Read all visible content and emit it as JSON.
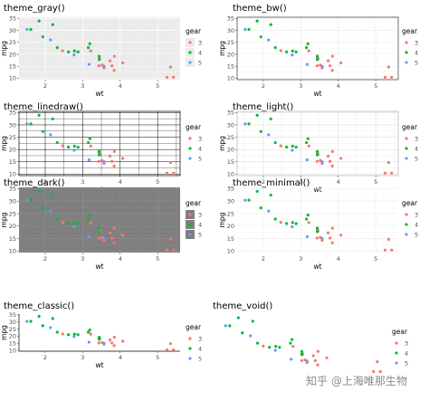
{
  "watermark": "知乎 @上海唯那生物",
  "chart_data": [
    {
      "type": "scatter",
      "title": "theme_gray()",
      "theme": "gray",
      "xlabel": "wt",
      "ylabel": "mpg",
      "xlim": [
        1.3,
        5.6
      ],
      "ylim": [
        9.4,
        35.5
      ],
      "xticks": [
        2,
        3,
        4,
        5
      ],
      "yticks": [
        10,
        15,
        20,
        25,
        30,
        35
      ],
      "legend": {
        "title": "gear",
        "placement": "right",
        "show": true
      },
      "series_ref": "mtcars"
    },
    {
      "type": "scatter",
      "title": "theme_bw()",
      "theme": "bw",
      "xlabel": "wt",
      "ylabel": "mpg",
      "xlim": [
        1.3,
        5.6
      ],
      "ylim": [
        9.4,
        35.5
      ],
      "xticks": [
        2,
        3,
        4,
        5
      ],
      "yticks": [
        10,
        15,
        20,
        25,
        30,
        35
      ],
      "legend": {
        "title": "gear",
        "placement": "right",
        "show": true
      },
      "series_ref": "mtcars"
    },
    {
      "type": "scatter",
      "title": "theme_linedraw()",
      "theme": "linedraw",
      "xlabel": "wt",
      "ylabel": "mpg",
      "xlim": [
        1.3,
        5.6
      ],
      "ylim": [
        9.4,
        35.5
      ],
      "xticks": [
        2,
        3,
        4,
        5
      ],
      "yticks": [
        10,
        15,
        20,
        25,
        30,
        35
      ],
      "legend": {
        "title": "gear",
        "placement": "right",
        "show": true
      },
      "series_ref": "mtcars"
    },
    {
      "type": "scatter",
      "title": "theme_light()",
      "theme": "light",
      "xlabel": "wt",
      "ylabel": "mpg",
      "xlim": [
        1.3,
        5.6
      ],
      "ylim": [
        9.4,
        35.5
      ],
      "xticks": [
        2,
        3,
        4,
        5
      ],
      "yticks": [
        10,
        15,
        20,
        25,
        30,
        35
      ],
      "legend": {
        "title": "gear",
        "placement": "right",
        "show": true
      },
      "series_ref": "mtcars"
    },
    {
      "type": "scatter",
      "title": "theme_dark()",
      "theme": "dark",
      "xlabel": "wt",
      "ylabel": "mpg",
      "xlim": [
        1.3,
        5.6
      ],
      "ylim": [
        9.4,
        35.5
      ],
      "xticks": [
        2,
        3,
        4,
        5
      ],
      "yticks": [
        10,
        15,
        20,
        25,
        30,
        35
      ],
      "legend": {
        "title": "gear",
        "placement": "right",
        "show": true
      },
      "series_ref": "mtcars"
    },
    {
      "type": "scatter",
      "title": "theme_minimal()",
      "theme": "minimal",
      "xlabel": "wt",
      "ylabel": "mpg",
      "xlim": [
        1.3,
        5.6
      ],
      "ylim": [
        9.4,
        35.5
      ],
      "xticks": [
        2,
        3,
        4,
        5
      ],
      "yticks": [
        10,
        15,
        20,
        25,
        30,
        35
      ],
      "legend": {
        "title": "gear",
        "placement": "right",
        "show": true
      },
      "series_ref": "mtcars"
    },
    {
      "type": "scatter",
      "title": "theme_classic()",
      "theme": "classic",
      "xlabel": "wt",
      "ylabel": "mpg",
      "xlim": [
        1.3,
        5.6
      ],
      "ylim": [
        9.4,
        35.5
      ],
      "xticks": [
        2,
        3,
        4,
        5
      ],
      "yticks": [
        10,
        15,
        20,
        25,
        30,
        35
      ],
      "legend": {
        "title": "gear",
        "placement": "right",
        "show": true
      },
      "series_ref": "mtcars"
    },
    {
      "type": "scatter",
      "title": "theme_void()",
      "theme": "void",
      "xlabel": "",
      "ylabel": "",
      "xlim": [
        1.3,
        5.6
      ],
      "ylim": [
        9.4,
        35.5
      ],
      "xticks": [],
      "yticks": [],
      "legend": {
        "title": "gear",
        "placement": "right",
        "show": true
      },
      "series_ref": "mtcars"
    }
  ],
  "series": [
    {
      "name": "3",
      "color": "#F8766D",
      "points": [
        [
          3.215,
          21.4
        ],
        [
          3.44,
          18.7
        ],
        [
          3.46,
          18.1
        ],
        [
          3.57,
          14.3
        ],
        [
          4.07,
          16.4
        ],
        [
          3.73,
          17.3
        ],
        [
          3.78,
          15.2
        ],
        [
          5.25,
          10.4
        ],
        [
          5.424,
          10.4
        ],
        [
          5.345,
          14.7
        ],
        [
          2.465,
          21.5
        ],
        [
          3.52,
          15.5
        ],
        [
          3.435,
          15.2
        ],
        [
          3.84,
          13.3
        ],
        [
          3.845,
          19.2
        ]
      ]
    },
    {
      "name": "4",
      "color": "#00BA38",
      "points": [
        [
          2.62,
          21.0
        ],
        [
          2.875,
          21.0
        ],
        [
          2.32,
          22.8
        ],
        [
          3.19,
          24.4
        ],
        [
          3.15,
          22.8
        ],
        [
          3.44,
          19.2
        ],
        [
          3.44,
          17.8
        ],
        [
          2.2,
          32.4
        ],
        [
          1.615,
          30.4
        ],
        [
          1.835,
          33.9
        ],
        [
          1.935,
          27.3
        ],
        [
          2.78,
          21.4
        ]
      ]
    },
    {
      "name": "5",
      "color": "#619CFF",
      "points": [
        [
          2.14,
          26.0
        ],
        [
          1.513,
          30.4
        ],
        [
          3.17,
          15.8
        ],
        [
          2.77,
          19.7
        ],
        [
          3.57,
          15.0
        ]
      ]
    }
  ]
}
